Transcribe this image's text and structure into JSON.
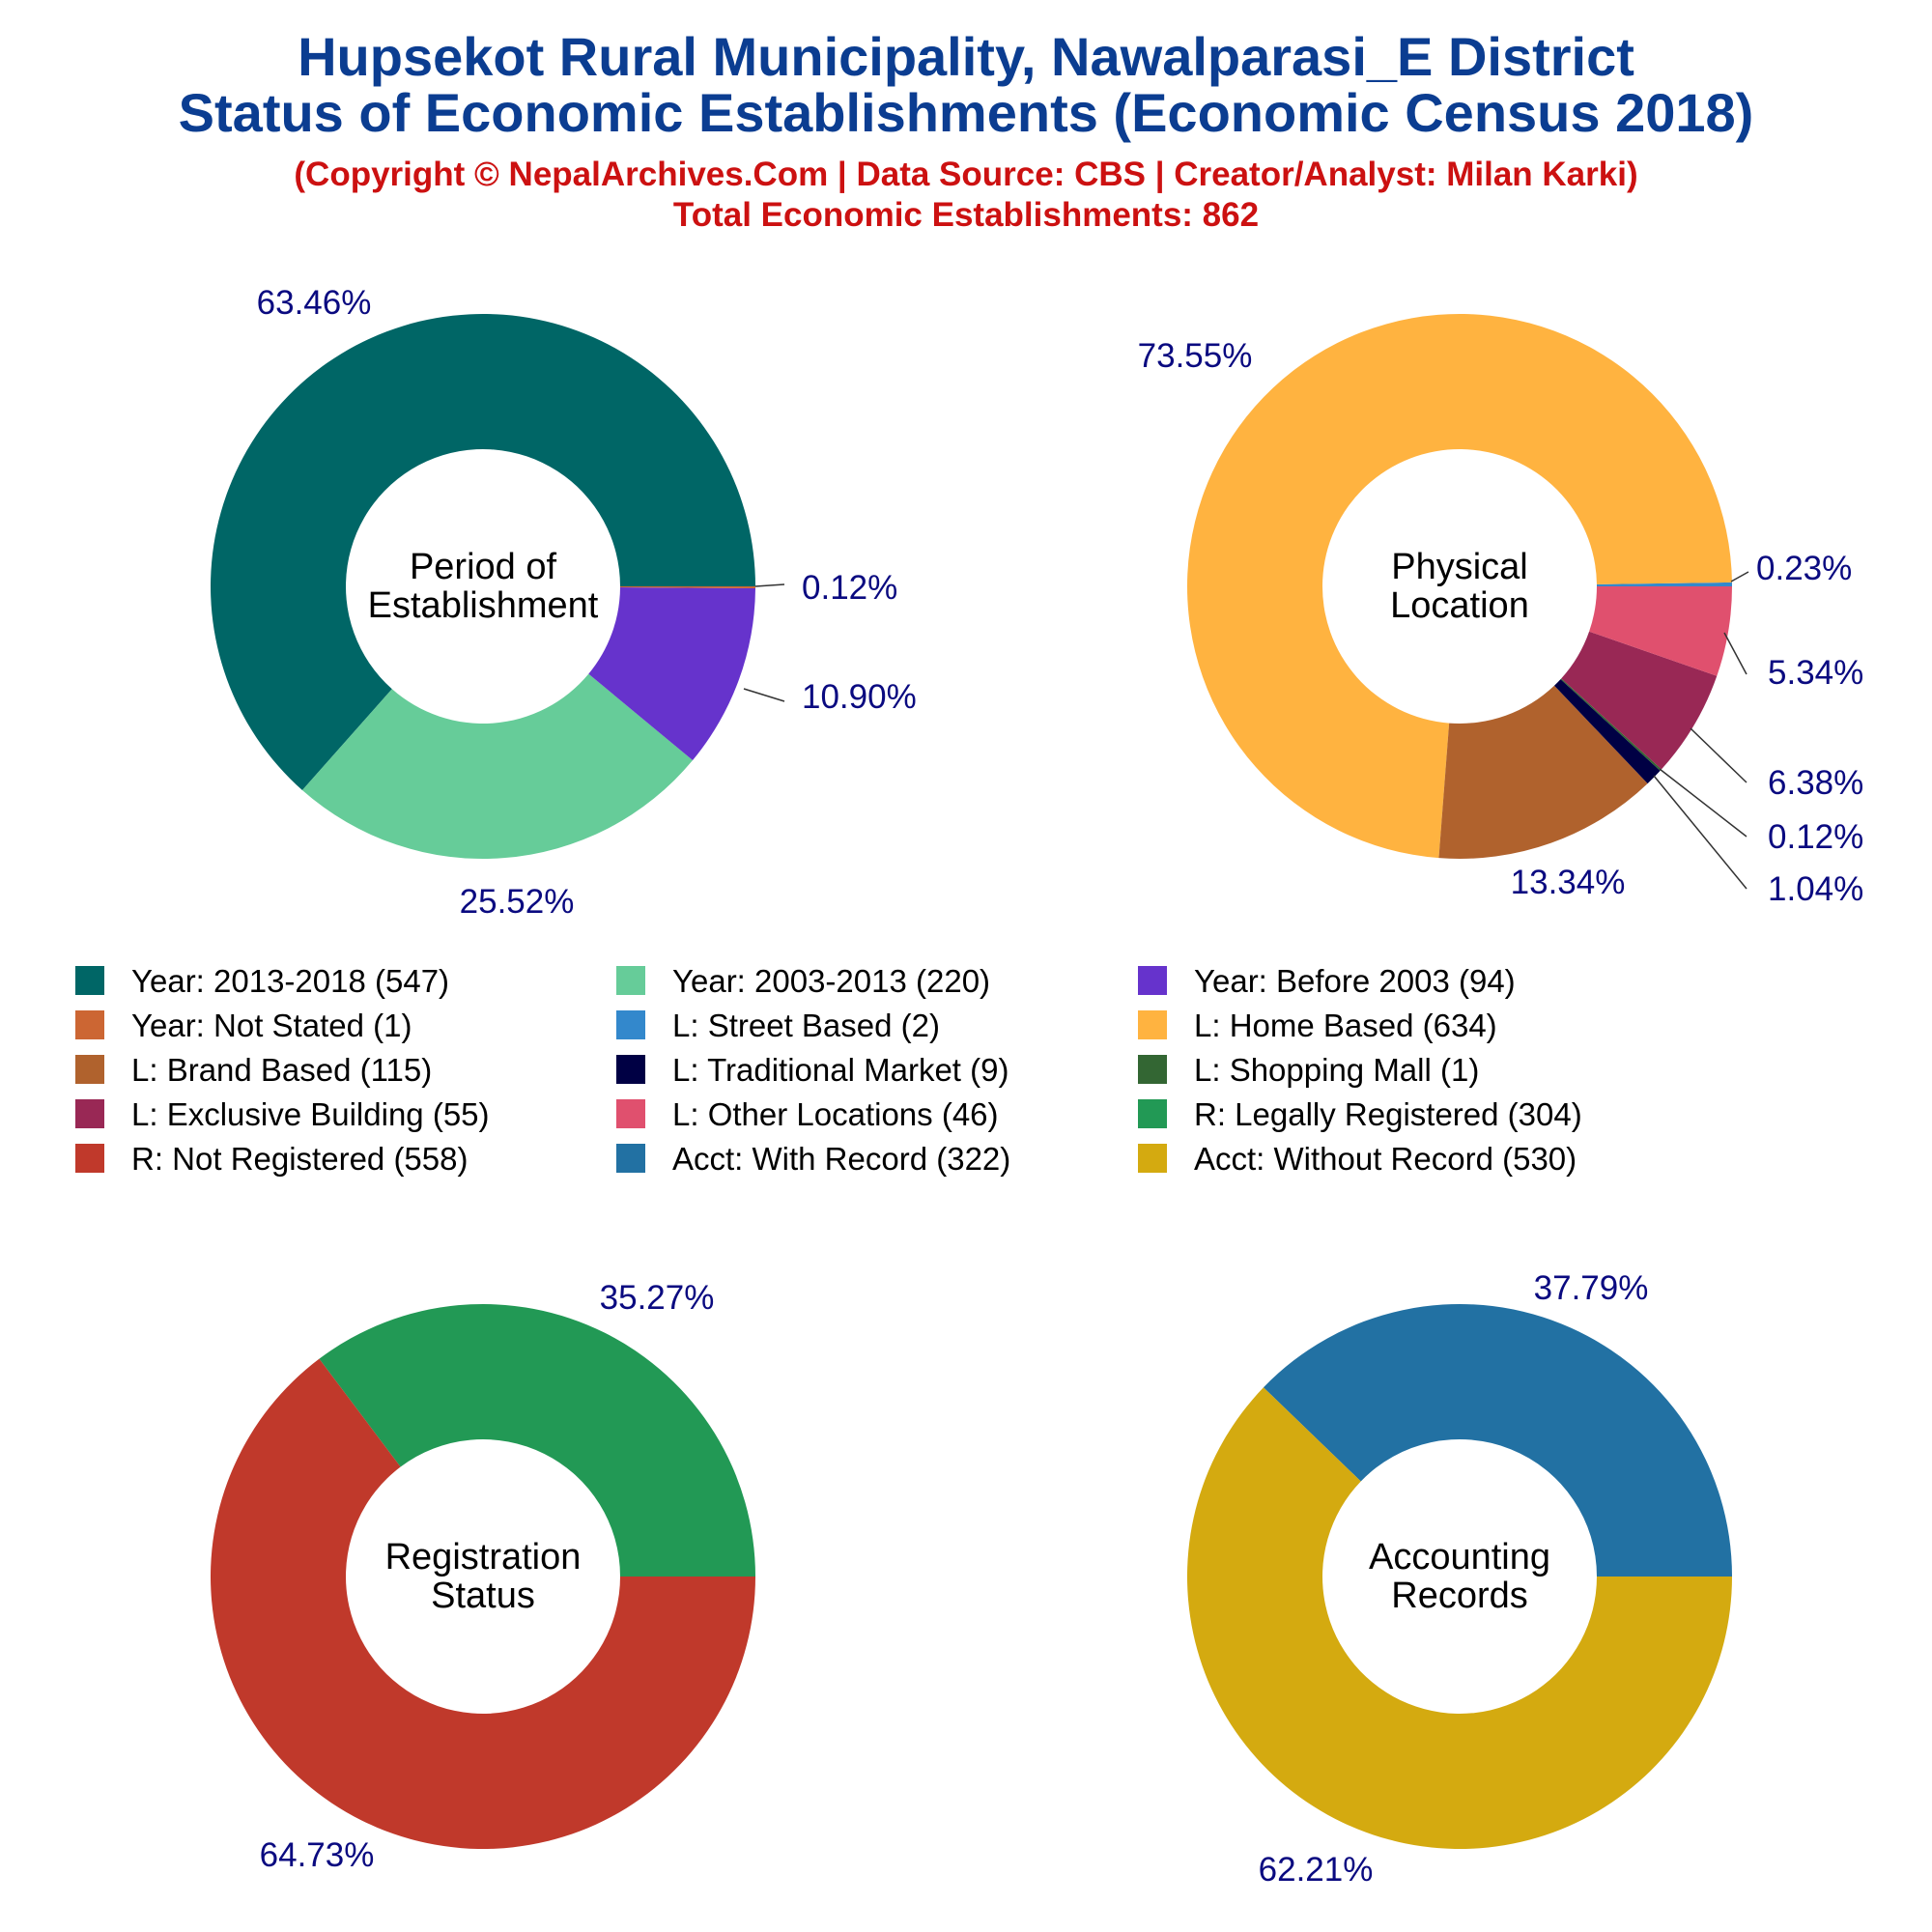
{
  "header": {
    "title_line1": "Hupsekot Rural Municipality, Nawalparasi_E District",
    "title_line2": "Status of Economic Establishments (Economic Census 2018)",
    "subtitle": "(Copyright © NepalArchives.Com | Data Source: CBS | Creator/Analyst: Milan Karki)",
    "total": "Total Economic Establishments: 862"
  },
  "legend": [
    {
      "label": "Year: 2013-2018 (547)",
      "color": "#006666"
    },
    {
      "label": "Year: 2003-2013 (220)",
      "color": "#66cc99"
    },
    {
      "label": "Year: Before 2003 (94)",
      "color": "#6633cc"
    },
    {
      "label": "Year: Not Stated (1)",
      "color": "#cc6633"
    },
    {
      "label": "L: Street Based (2)",
      "color": "#3388cc"
    },
    {
      "label": "L: Home Based (634)",
      "color": "#ffb340"
    },
    {
      "label": "L: Brand Based (115)",
      "color": "#b0622d"
    },
    {
      "label": "L: Traditional Market (9)",
      "color": "#000044"
    },
    {
      "label": "L: Shopping Mall (1)",
      "color": "#336633"
    },
    {
      "label": "L: Exclusive Building (55)",
      "color": "#992855"
    },
    {
      "label": "L: Other Locations (46)",
      "color": "#e0506e"
    },
    {
      "label": "R: Legally Registered (304)",
      "color": "#229955"
    },
    {
      "label": "R: Not Registered (558)",
      "color": "#c0392b"
    },
    {
      "label": "Acct: With Record (322)",
      "color": "#2271a3"
    },
    {
      "label": "Acct: Without Record (530)",
      "color": "#d4aa10"
    }
  ],
  "chart_data": [
    {
      "type": "pie",
      "title": "Period of Establishment",
      "center_lines": [
        "Period of",
        "Establishment"
      ],
      "slices": [
        {
          "name": "Year: 2013-2018",
          "value": 547,
          "label": "63.46%",
          "color": "#006666"
        },
        {
          "name": "Year: 2003-2013",
          "value": 220,
          "label": "25.52%",
          "color": "#66cc99"
        },
        {
          "name": "Year: Before 2003",
          "value": 94,
          "label": "10.90%",
          "color": "#6633cc"
        },
        {
          "name": "Year: Not Stated",
          "value": 1,
          "label": "0.12%",
          "color": "#cc6633"
        }
      ]
    },
    {
      "type": "pie",
      "title": "Physical Location",
      "center_lines": [
        "Physical",
        "Location"
      ],
      "slices": [
        {
          "name": "L: Street Based",
          "value": 2,
          "label": "0.23%",
          "color": "#3388cc"
        },
        {
          "name": "L: Home Based",
          "value": 634,
          "label": "73.55%",
          "color": "#ffb340"
        },
        {
          "name": "L: Brand Based",
          "value": 115,
          "label": "13.34%",
          "color": "#b0622d"
        },
        {
          "name": "L: Traditional Market",
          "value": 9,
          "label": "1.04%",
          "color": "#000044"
        },
        {
          "name": "L: Shopping Mall",
          "value": 1,
          "label": "0.12%",
          "color": "#336633"
        },
        {
          "name": "L: Exclusive Building",
          "value": 55,
          "label": "6.38%",
          "color": "#992855"
        },
        {
          "name": "L: Other Locations",
          "value": 46,
          "label": "5.34%",
          "color": "#e0506e"
        }
      ]
    },
    {
      "type": "pie",
      "title": "Registration Status",
      "center_lines": [
        "Registration",
        "Status"
      ],
      "slices": [
        {
          "name": "R: Legally Registered",
          "value": 304,
          "label": "35.27%",
          "color": "#229955"
        },
        {
          "name": "R: Not Registered",
          "value": 558,
          "label": "64.73%",
          "color": "#c0392b"
        }
      ]
    },
    {
      "type": "pie",
      "title": "Accounting Records",
      "center_lines": [
        "Accounting",
        "Records"
      ],
      "slices": [
        {
          "name": "Acct: With Record",
          "value": 322,
          "label": "37.79%",
          "color": "#2271a3"
        },
        {
          "name": "Acct: Without Record",
          "value": 530,
          "label": "62.21%",
          "color": "#d4aa10"
        }
      ]
    }
  ]
}
